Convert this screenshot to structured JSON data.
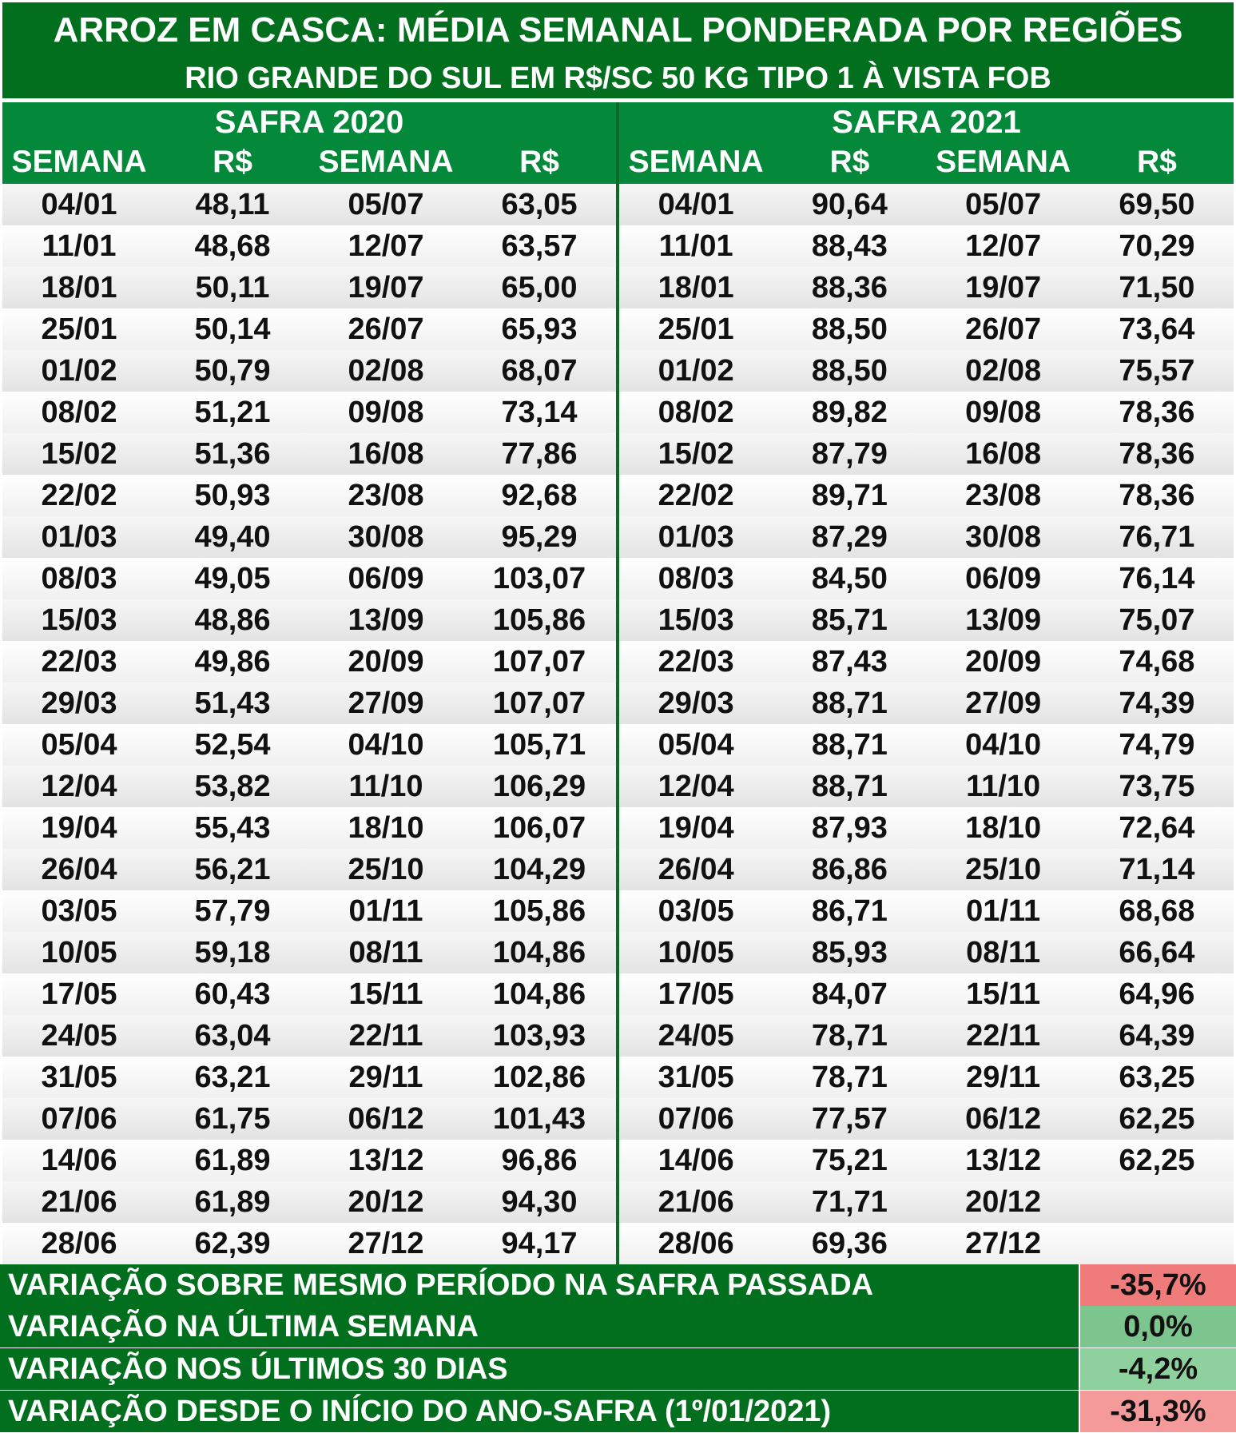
{
  "header": {
    "title": "ARROZ EM CASCA: MÉDIA SEMANAL PONDERADA POR REGIÕES",
    "subtitle": "RIO GRANDE DO SUL EM R$/SC 50 KG TIPO 1 À VISTA FOB"
  },
  "safras": [
    {
      "title": "SAFRA 2020",
      "col_labels": [
        "SEMANA",
        "R$",
        "SEMANA",
        "R$"
      ],
      "rows": [
        [
          "04/01",
          "48,11",
          "05/07",
          "63,05"
        ],
        [
          "11/01",
          "48,68",
          "12/07",
          "63,57"
        ],
        [
          "18/01",
          "50,11",
          "19/07",
          "65,00"
        ],
        [
          "25/01",
          "50,14",
          "26/07",
          "65,93"
        ],
        [
          "01/02",
          "50,79",
          "02/08",
          "68,07"
        ],
        [
          "08/02",
          "51,21",
          "09/08",
          "73,14"
        ],
        [
          "15/02",
          "51,36",
          "16/08",
          "77,86"
        ],
        [
          "22/02",
          "50,93",
          "23/08",
          "92,68"
        ],
        [
          "01/03",
          "49,40",
          "30/08",
          "95,29"
        ],
        [
          "08/03",
          "49,05",
          "06/09",
          "103,07"
        ],
        [
          "15/03",
          "48,86",
          "13/09",
          "105,86"
        ],
        [
          "22/03",
          "49,86",
          "20/09",
          "107,07"
        ],
        [
          "29/03",
          "51,43",
          "27/09",
          "107,07"
        ],
        [
          "05/04",
          "52,54",
          "04/10",
          "105,71"
        ],
        [
          "12/04",
          "53,82",
          "11/10",
          "106,29"
        ],
        [
          "19/04",
          "55,43",
          "18/10",
          "106,07"
        ],
        [
          "26/04",
          "56,21",
          "25/10",
          "104,29"
        ],
        [
          "03/05",
          "57,79",
          "01/11",
          "105,86"
        ],
        [
          "10/05",
          "59,18",
          "08/11",
          "104,86"
        ],
        [
          "17/05",
          "60,43",
          "15/11",
          "104,86"
        ],
        [
          "24/05",
          "63,04",
          "22/11",
          "103,93"
        ],
        [
          "31/05",
          "63,21",
          "29/11",
          "102,86"
        ],
        [
          "07/06",
          "61,75",
          "06/12",
          "101,43"
        ],
        [
          "14/06",
          "61,89",
          "13/12",
          "96,86"
        ],
        [
          "21/06",
          "61,89",
          "20/12",
          "94,30"
        ],
        [
          "28/06",
          "62,39",
          "27/12",
          "94,17"
        ]
      ]
    },
    {
      "title": "SAFRA 2021",
      "col_labels": [
        "SEMANA",
        "R$",
        "SEMANA",
        "R$"
      ],
      "rows": [
        [
          "04/01",
          "90,64",
          "05/07",
          "69,50"
        ],
        [
          "11/01",
          "88,43",
          "12/07",
          "70,29"
        ],
        [
          "18/01",
          "88,36",
          "19/07",
          "71,50"
        ],
        [
          "25/01",
          "88,50",
          "26/07",
          "73,64"
        ],
        [
          "01/02",
          "88,50",
          "02/08",
          "75,57"
        ],
        [
          "08/02",
          "89,82",
          "09/08",
          "78,36"
        ],
        [
          "15/02",
          "87,79",
          "16/08",
          "78,36"
        ],
        [
          "22/02",
          "89,71",
          "23/08",
          "78,36"
        ],
        [
          "01/03",
          "87,29",
          "30/08",
          "76,71"
        ],
        [
          "08/03",
          "84,50",
          "06/09",
          "76,14"
        ],
        [
          "15/03",
          "85,71",
          "13/09",
          "75,07"
        ],
        [
          "22/03",
          "87,43",
          "20/09",
          "74,68"
        ],
        [
          "29/03",
          "88,71",
          "27/09",
          "74,39"
        ],
        [
          "05/04",
          "88,71",
          "04/10",
          "74,79"
        ],
        [
          "12/04",
          "88,71",
          "11/10",
          "73,75"
        ],
        [
          "19/04",
          "87,93",
          "18/10",
          "72,64"
        ],
        [
          "26/04",
          "86,86",
          "25/10",
          "71,14"
        ],
        [
          "03/05",
          "86,71",
          "01/11",
          "68,68"
        ],
        [
          "10/05",
          "85,93",
          "08/11",
          "66,64"
        ],
        [
          "17/05",
          "84,07",
          "15/11",
          "64,96"
        ],
        [
          "24/05",
          "78,71",
          "22/11",
          "64,39"
        ],
        [
          "31/05",
          "78,71",
          "29/11",
          "63,25"
        ],
        [
          "07/06",
          "77,57",
          "06/12",
          "62,25"
        ],
        [
          "14/06",
          "75,21",
          "13/12",
          "62,25"
        ],
        [
          "21/06",
          "71,71",
          "20/12",
          ""
        ],
        [
          "28/06",
          "69,36",
          "27/12",
          ""
        ]
      ]
    }
  ],
  "variations": [
    {
      "label": "VARIAÇÃO SOBRE MESMO PERÍODO NA SAFRA PASSADA",
      "value": "-35,7%",
      "color": "#f07b7b"
    },
    {
      "label": "VARIAÇÃO NA ÚLTIMA SEMANA",
      "value": "0,0%",
      "color": "#7cc58f"
    },
    {
      "label": "VARIAÇÃO NOS ÚLTIMOS 30 DIAS",
      "value": "-4,2%",
      "color": "#8fd19e"
    },
    {
      "label": "VARIAÇÃO DESDE O INÍCIO DO ANO-SAFRA (1º/01/2021)",
      "value": "-31,3%",
      "color": "#f59a9a"
    }
  ]
}
